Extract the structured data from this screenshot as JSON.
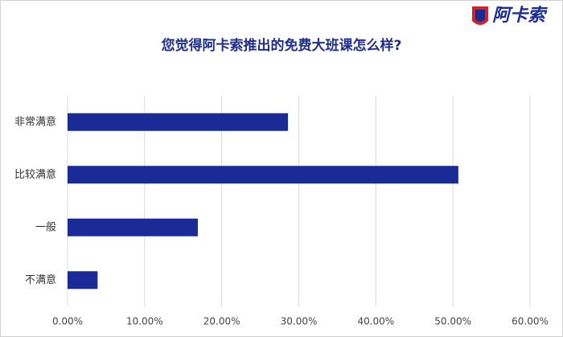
{
  "logo": {
    "text": "阿卡索"
  },
  "chart_data": {
    "type": "bar",
    "orientation": "horizontal",
    "title": "您觉得阿卡索推出的免费大班课怎么样?",
    "categories": [
      "非常满意",
      "比较满意",
      "一般",
      "不满意"
    ],
    "values": [
      28.6,
      50.7,
      16.9,
      3.9
    ],
    "color": "#1a2a96",
    "xlim": [
      0,
      60
    ],
    "xticks": [
      {
        "value": 0,
        "label": "0.00%"
      },
      {
        "value": 10,
        "label": "10.00%"
      },
      {
        "value": 20,
        "label": "20.00%"
      },
      {
        "value": 30,
        "label": "30.00%"
      },
      {
        "value": 40,
        "label": "40.00%"
      },
      {
        "value": 50,
        "label": "50.00%"
      },
      {
        "value": 60,
        "label": "60.00%"
      }
    ],
    "grid": true
  }
}
